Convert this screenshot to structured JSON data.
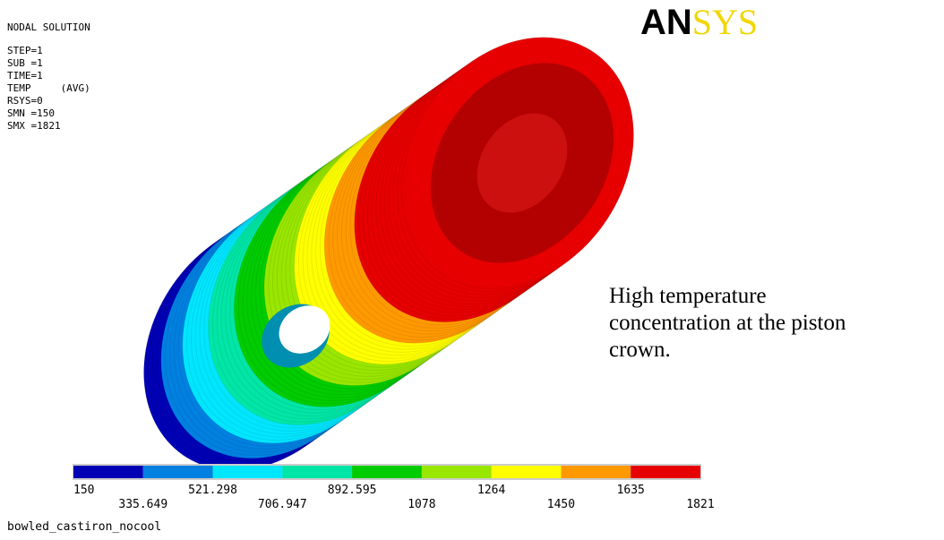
{
  "header": {
    "title": "NODAL SOLUTION",
    "lines": [
      "STEP=1",
      "SUB =1",
      "TIME=1",
      "TEMP     (AVG)",
      "RSYS=0",
      "SMN =150",
      "SMX =1821"
    ]
  },
  "logo": {
    "bold": "AN",
    "light": "SYS"
  },
  "annotation": {
    "lines": [
      "High temperature",
      "concentration at the piston",
      "crown."
    ]
  },
  "legend": {
    "colors": [
      "#0000b4",
      "#0080e0",
      "#00e6ff",
      "#00e6a6",
      "#00cc00",
      "#99e600",
      "#ffff00",
      "#ff9900",
      "#e60000"
    ],
    "labels_top": [
      "150",
      "521.298",
      "892.595",
      "1264",
      "1635"
    ],
    "labels_bottom": [
      "335.649",
      "706.947",
      "1078",
      "1450",
      "1821"
    ]
  },
  "footer": {
    "filename": "bowled_castiron_nocool"
  }
}
